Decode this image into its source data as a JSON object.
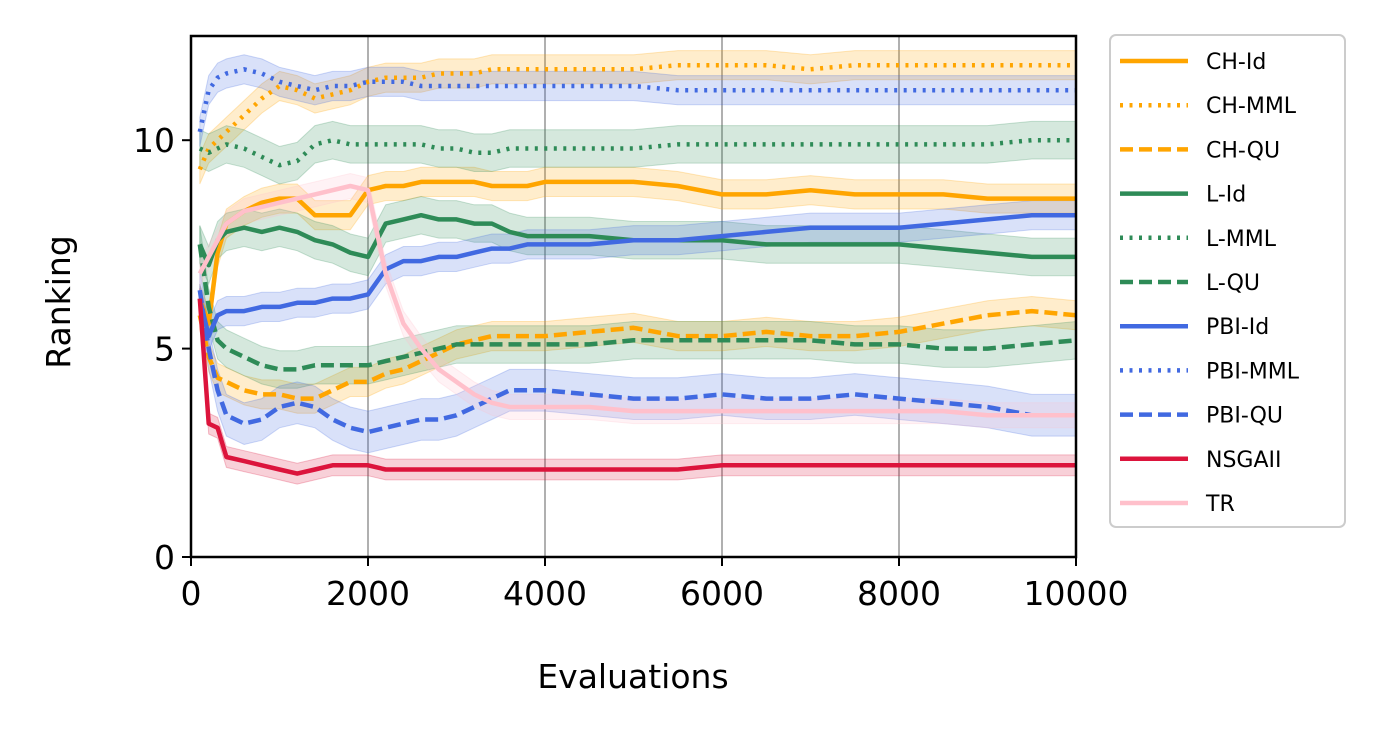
{
  "chart_data": {
    "type": "line",
    "title": "",
    "xlabel": "Evaluations",
    "ylabel": "Ranking",
    "xlim": [
      0,
      10000
    ],
    "ylim": [
      0,
      12.5
    ],
    "xticks": [
      0,
      2000,
      4000,
      6000,
      8000,
      10000
    ],
    "yticks": [
      0,
      5,
      10
    ],
    "xtick_labels": [
      "0",
      "2000",
      "4000",
      "6000",
      "8000",
      "10000"
    ],
    "ytick_labels": [
      "0",
      "5",
      "10"
    ],
    "grid": "x",
    "legend_position": "outside-right",
    "x": [
      100,
      200,
      300,
      400,
      600,
      800,
      1000,
      1200,
      1400,
      1600,
      1800,
      2000,
      2200,
      2400,
      2600,
      2800,
      3000,
      3200,
      3400,
      3600,
      3800,
      4000,
      4500,
      5000,
      5500,
      6000,
      6500,
      7000,
      7500,
      8000,
      8500,
      9000,
      9500,
      10000
    ],
    "series": [
      {
        "name": "CH-Id",
        "color": "#FFA500",
        "style": "solid",
        "band": 0.35,
        "values": [
          6.2,
          5.6,
          7.3,
          8.0,
          8.3,
          8.5,
          8.6,
          8.6,
          8.2,
          8.2,
          8.2,
          8.8,
          8.9,
          8.9,
          9.0,
          9.0,
          9.0,
          9.0,
          8.9,
          8.9,
          8.9,
          9.0,
          9.0,
          9.0,
          8.9,
          8.7,
          8.7,
          8.8,
          8.7,
          8.7,
          8.7,
          8.6,
          8.6,
          8.6
        ]
      },
      {
        "name": "CH-MML",
        "color": "#FFA500",
        "style": "dotted",
        "band": 0.35,
        "values": [
          9.3,
          9.8,
          10.0,
          10.2,
          10.6,
          11.0,
          11.3,
          11.2,
          11.0,
          11.1,
          11.2,
          11.4,
          11.5,
          11.5,
          11.5,
          11.6,
          11.6,
          11.6,
          11.7,
          11.7,
          11.7,
          11.7,
          11.7,
          11.7,
          11.8,
          11.8,
          11.8,
          11.7,
          11.8,
          11.8,
          11.8,
          11.8,
          11.8,
          11.8
        ]
      },
      {
        "name": "CH-QU",
        "color": "#FFA500",
        "style": "dashed",
        "band": 0.35,
        "values": [
          5.8,
          4.8,
          4.3,
          4.2,
          4.0,
          3.9,
          3.9,
          3.8,
          3.8,
          4.0,
          4.2,
          4.2,
          4.4,
          4.5,
          4.7,
          4.9,
          5.1,
          5.2,
          5.3,
          5.3,
          5.3,
          5.3,
          5.4,
          5.5,
          5.3,
          5.3,
          5.4,
          5.3,
          5.3,
          5.4,
          5.6,
          5.8,
          5.9,
          5.8
        ]
      },
      {
        "name": "L-Id",
        "color": "#2E8B57",
        "style": "solid",
        "band": 0.45,
        "values": [
          7.5,
          7.0,
          7.6,
          7.8,
          7.9,
          7.8,
          7.9,
          7.8,
          7.6,
          7.5,
          7.3,
          7.2,
          8.0,
          8.1,
          8.2,
          8.1,
          8.1,
          8.0,
          8.0,
          7.8,
          7.7,
          7.7,
          7.7,
          7.6,
          7.6,
          7.6,
          7.5,
          7.5,
          7.5,
          7.5,
          7.4,
          7.3,
          7.2,
          7.2
        ]
      },
      {
        "name": "L-MML",
        "color": "#2E8B57",
        "style": "dotted",
        "band": 0.45,
        "values": [
          9.8,
          9.7,
          9.8,
          9.9,
          9.8,
          9.6,
          9.4,
          9.5,
          9.9,
          10.0,
          9.9,
          9.9,
          9.9,
          9.9,
          9.9,
          9.8,
          9.8,
          9.7,
          9.7,
          9.8,
          9.8,
          9.8,
          9.8,
          9.8,
          9.9,
          9.9,
          9.9,
          9.9,
          9.9,
          9.9,
          9.9,
          9.9,
          10.0,
          10.0
        ]
      },
      {
        "name": "L-QU",
        "color": "#2E8B57",
        "style": "dashed",
        "band": 0.45,
        "values": [
          7.5,
          6.0,
          5.2,
          5.0,
          4.8,
          4.6,
          4.5,
          4.5,
          4.6,
          4.6,
          4.6,
          4.6,
          4.7,
          4.8,
          4.9,
          5.0,
          5.1,
          5.1,
          5.1,
          5.1,
          5.1,
          5.1,
          5.1,
          5.2,
          5.2,
          5.2,
          5.2,
          5.2,
          5.1,
          5.1,
          5.0,
          5.0,
          5.1,
          5.2
        ]
      },
      {
        "name": "PBI-Id",
        "color": "#4169E1",
        "style": "solid",
        "band": 0.35,
        "values": [
          6.2,
          5.3,
          5.8,
          5.9,
          5.9,
          6.0,
          6.0,
          6.1,
          6.1,
          6.2,
          6.2,
          6.3,
          6.9,
          7.1,
          7.1,
          7.2,
          7.2,
          7.3,
          7.4,
          7.4,
          7.5,
          7.5,
          7.5,
          7.6,
          7.6,
          7.7,
          7.8,
          7.9,
          7.9,
          7.9,
          8.0,
          8.1,
          8.2,
          8.2
        ]
      },
      {
        "name": "PBI-MML",
        "color": "#4169E1",
        "style": "dotted",
        "band": 0.35,
        "values": [
          10.2,
          11.2,
          11.5,
          11.6,
          11.7,
          11.6,
          11.4,
          11.3,
          11.2,
          11.3,
          11.3,
          11.4,
          11.4,
          11.4,
          11.3,
          11.3,
          11.3,
          11.3,
          11.3,
          11.3,
          11.3,
          11.3,
          11.3,
          11.3,
          11.2,
          11.2,
          11.2,
          11.2,
          11.2,
          11.2,
          11.2,
          11.2,
          11.2,
          11.2
        ]
      },
      {
        "name": "PBI-QU",
        "color": "#4169E1",
        "style": "dashed",
        "band": 0.5,
        "values": [
          6.4,
          5.0,
          4.0,
          3.4,
          3.2,
          3.3,
          3.6,
          3.7,
          3.6,
          3.3,
          3.1,
          3.0,
          3.1,
          3.2,
          3.3,
          3.3,
          3.4,
          3.6,
          3.8,
          4.0,
          4.0,
          4.0,
          3.9,
          3.8,
          3.8,
          3.9,
          3.8,
          3.8,
          3.9,
          3.8,
          3.7,
          3.6,
          3.4,
          3.4
        ]
      },
      {
        "name": "NSGAII",
        "color": "#DC143C",
        "style": "solid",
        "band": 0.25,
        "values": [
          6.2,
          3.2,
          3.1,
          2.4,
          2.3,
          2.2,
          2.1,
          2.0,
          2.1,
          2.2,
          2.2,
          2.2,
          2.1,
          2.1,
          2.1,
          2.1,
          2.1,
          2.1,
          2.1,
          2.1,
          2.1,
          2.1,
          2.1,
          2.1,
          2.1,
          2.2,
          2.2,
          2.2,
          2.2,
          2.2,
          2.2,
          2.2,
          2.2,
          2.2
        ]
      },
      {
        "name": "TR",
        "color": "#FFC0CB",
        "style": "solid",
        "band": 0.3,
        "values": [
          6.8,
          7.2,
          7.6,
          8.0,
          8.3,
          8.4,
          8.5,
          8.6,
          8.7,
          8.8,
          8.9,
          8.8,
          6.8,
          5.6,
          5.0,
          4.5,
          4.2,
          3.9,
          3.7,
          3.6,
          3.6,
          3.6,
          3.6,
          3.5,
          3.5,
          3.5,
          3.5,
          3.5,
          3.5,
          3.5,
          3.5,
          3.4,
          3.4,
          3.4
        ]
      }
    ]
  }
}
